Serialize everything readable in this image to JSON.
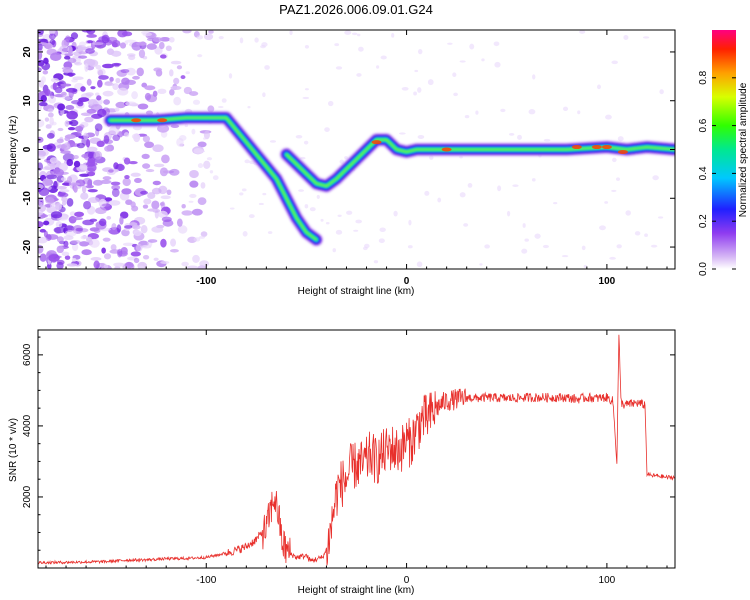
{
  "title": "PAZ1.2026.006.09.01.G24",
  "chart_data": [
    {
      "type": "heatmap",
      "xlabel": "Height of straight line (km)",
      "ylabel": "Frequency (Hz)",
      "xlim": [
        -184,
        134
      ],
      "ylim": [
        -24.5,
        24.5
      ],
      "xticks": [
        -100,
        0,
        100
      ],
      "yticks": [
        -20,
        -10,
        0,
        10,
        20
      ],
      "ridge": [
        [
          -148,
          6
        ],
        [
          -140,
          6
        ],
        [
          -125,
          6
        ],
        [
          -110,
          6.5
        ],
        [
          -95,
          6.5
        ],
        [
          -90,
          6.5
        ],
        [
          -85,
          4
        ],
        [
          -80,
          1.5
        ],
        [
          -75,
          -1
        ],
        [
          -70,
          -3.5
        ],
        [
          -65,
          -6
        ],
        [
          -60,
          -10
        ],
        [
          -55,
          -14
        ],
        [
          -50,
          -17
        ],
        [
          -45,
          -18.5
        ]
      ],
      "ridge2": [
        [
          -60,
          -1
        ],
        [
          -55,
          -3
        ],
        [
          -50,
          -5
        ],
        [
          -45,
          -7
        ],
        [
          -40,
          -7.5
        ],
        [
          -35,
          -6
        ],
        [
          -30,
          -4
        ],
        [
          -25,
          -2
        ],
        [
          -20,
          0
        ],
        [
          -15,
          2
        ],
        [
          -10,
          2
        ],
        [
          -5,
          0
        ],
        [
          0,
          -0.5
        ],
        [
          5,
          0
        ],
        [
          20,
          0
        ],
        [
          40,
          0
        ],
        [
          60,
          0
        ],
        [
          80,
          0
        ],
        [
          100,
          0.5
        ],
        [
          110,
          0
        ],
        [
          120,
          0.5
        ],
        [
          134,
          0
        ]
      ],
      "colorbar": {
        "label": "Normalized spectral amplitude",
        "ticks": [
          0.0,
          0.2,
          0.4,
          0.6,
          0.8
        ],
        "range": [
          0,
          1
        ]
      }
    },
    {
      "type": "line",
      "xlabel": "Height of straight line (km)",
      "ylabel": "SNR (10 * v/v)",
      "xlim": [
        -184,
        134
      ],
      "ylim": [
        0,
        6700
      ],
      "xticks": [
        -100,
        0,
        100
      ],
      "yticks": [
        2000,
        4000,
        6000
      ],
      "color": "#e8302c",
      "series": [
        {
          "name": "SNR",
          "x": [
            -184,
            -170,
            -160,
            -150,
            -140,
            -130,
            -120,
            -110,
            -100,
            -90,
            -85,
            -80,
            -75,
            -72,
            -70,
            -68,
            -66,
            -64,
            -62,
            -60,
            -58,
            -55,
            -50,
            -48,
            -45,
            -42,
            -40,
            -38,
            -36,
            -34,
            -32,
            -30,
            -28,
            -25,
            -22,
            -20,
            -18,
            -15,
            -12,
            -10,
            -8,
            -5,
            -2,
            0,
            2,
            5,
            8,
            10,
            12,
            15,
            18,
            20,
            25,
            30,
            35,
            40,
            50,
            60,
            70,
            80,
            85,
            90,
            95,
            100,
            103,
            105,
            106,
            107,
            108,
            110,
            115,
            118,
            119,
            120,
            122,
            125,
            130,
            134
          ],
          "y": [
            150,
            160,
            170,
            180,
            220,
            230,
            260,
            270,
            300,
            420,
            500,
            600,
            800,
            1000,
            1100,
            1600,
            2000,
            1500,
            700,
            500,
            400,
            300,
            350,
            200,
            250,
            300,
            500,
            1000,
            1800,
            2300,
            2400,
            2500,
            2800,
            2900,
            2900,
            3000,
            3200,
            3000,
            3200,
            3300,
            3400,
            3300,
            3400,
            3600,
            3500,
            3900,
            4200,
            4200,
            4300,
            4500,
            4650,
            4700,
            4750,
            4800,
            4780,
            4800,
            4780,
            4800,
            4800,
            4800,
            4750,
            4800,
            4780,
            4800,
            4700,
            3000,
            6600,
            4700,
            4600,
            4600,
            4650,
            4600,
            4600,
            2650,
            2600,
            2600,
            2550,
            2550
          ]
        }
      ]
    }
  ]
}
